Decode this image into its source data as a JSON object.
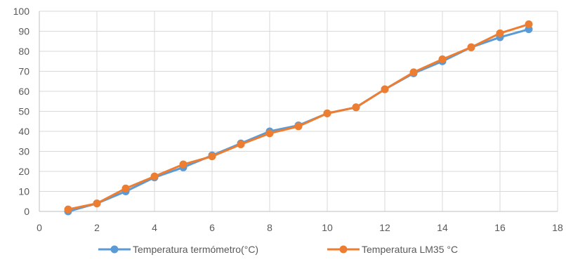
{
  "chart_data": {
    "type": "line",
    "title": "",
    "xlabel": "",
    "ylabel": "",
    "xlim": [
      0,
      18
    ],
    "ylim": [
      0,
      100
    ],
    "x_ticks": [
      0,
      2,
      4,
      6,
      8,
      10,
      12,
      14,
      16,
      18
    ],
    "y_ticks": [
      0,
      10,
      20,
      30,
      40,
      50,
      60,
      70,
      80,
      90,
      100
    ],
    "grid": "on",
    "legend_position": "bottom",
    "series": [
      {
        "name": "Temperatura termómetro(°C)",
        "color": "#5B9BD5",
        "x": [
          1,
          2,
          3,
          4,
          5,
          6,
          7,
          8,
          9,
          10,
          11,
          12,
          13,
          14,
          15,
          16,
          17
        ],
        "y": [
          0,
          4,
          10,
          17,
          22,
          28,
          34,
          40,
          43,
          49,
          52,
          61,
          69,
          75,
          82,
          87,
          91
        ]
      },
      {
        "name": "Temperatura LM35 °C",
        "color": "#ED7D31",
        "x": [
          1,
          2,
          3,
          4,
          5,
          6,
          7,
          8,
          9,
          10,
          11,
          12,
          13,
          14,
          15,
          16,
          17
        ],
        "y": [
          1,
          4,
          11.5,
          17.5,
          23.5,
          27.5,
          33.5,
          39,
          42.5,
          49,
          52,
          61,
          69.5,
          76,
          82,
          89,
          93.5
        ]
      }
    ]
  }
}
